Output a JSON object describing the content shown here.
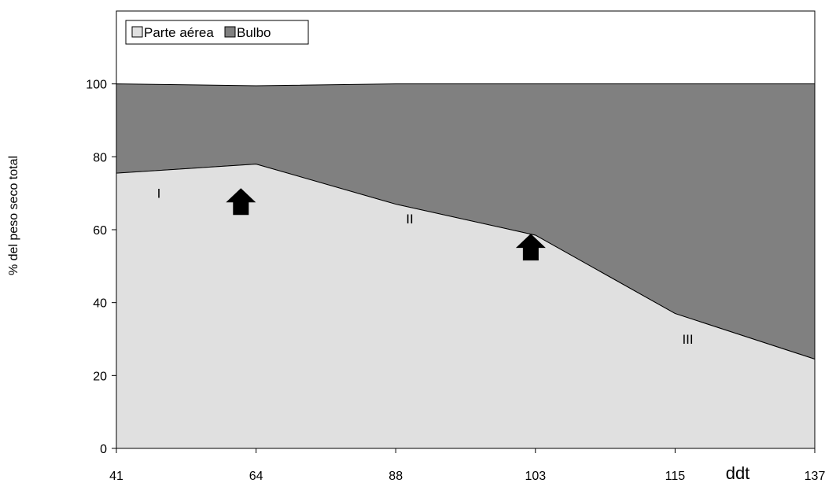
{
  "chart_data": {
    "type": "area",
    "stacked": true,
    "x": [
      41,
      64,
      88,
      103,
      115,
      137
    ],
    "xlabel": "ddt",
    "ylabel": "% del peso seco total",
    "ylim": [
      0,
      120
    ],
    "yticks": [
      0,
      20,
      40,
      60,
      80,
      100
    ],
    "grid": false,
    "legend_position": "top-left",
    "series": [
      {
        "name": "Parte aérea",
        "values": [
          75.5,
          78,
          67,
          58.5,
          37,
          24.5
        ],
        "color": "#e0e0e0"
      },
      {
        "name": "Bulbo",
        "values": [
          24.5,
          21.5,
          33,
          41.5,
          63,
          75.5
        ],
        "color": "#808080"
      }
    ],
    "annotations": [
      {
        "type": "text",
        "text": "I",
        "x": 48,
        "y": 70
      },
      {
        "type": "text",
        "text": "II",
        "x": 89.5,
        "y": 63
      },
      {
        "type": "text",
        "text": "III",
        "x": 117,
        "y": 30
      },
      {
        "type": "arrow-up",
        "icon": "up-arrow-icon",
        "x": 61.5,
        "y": 67.5
      },
      {
        "type": "arrow-up",
        "icon": "up-arrow-icon",
        "x": 102.5,
        "y": 55
      }
    ]
  }
}
